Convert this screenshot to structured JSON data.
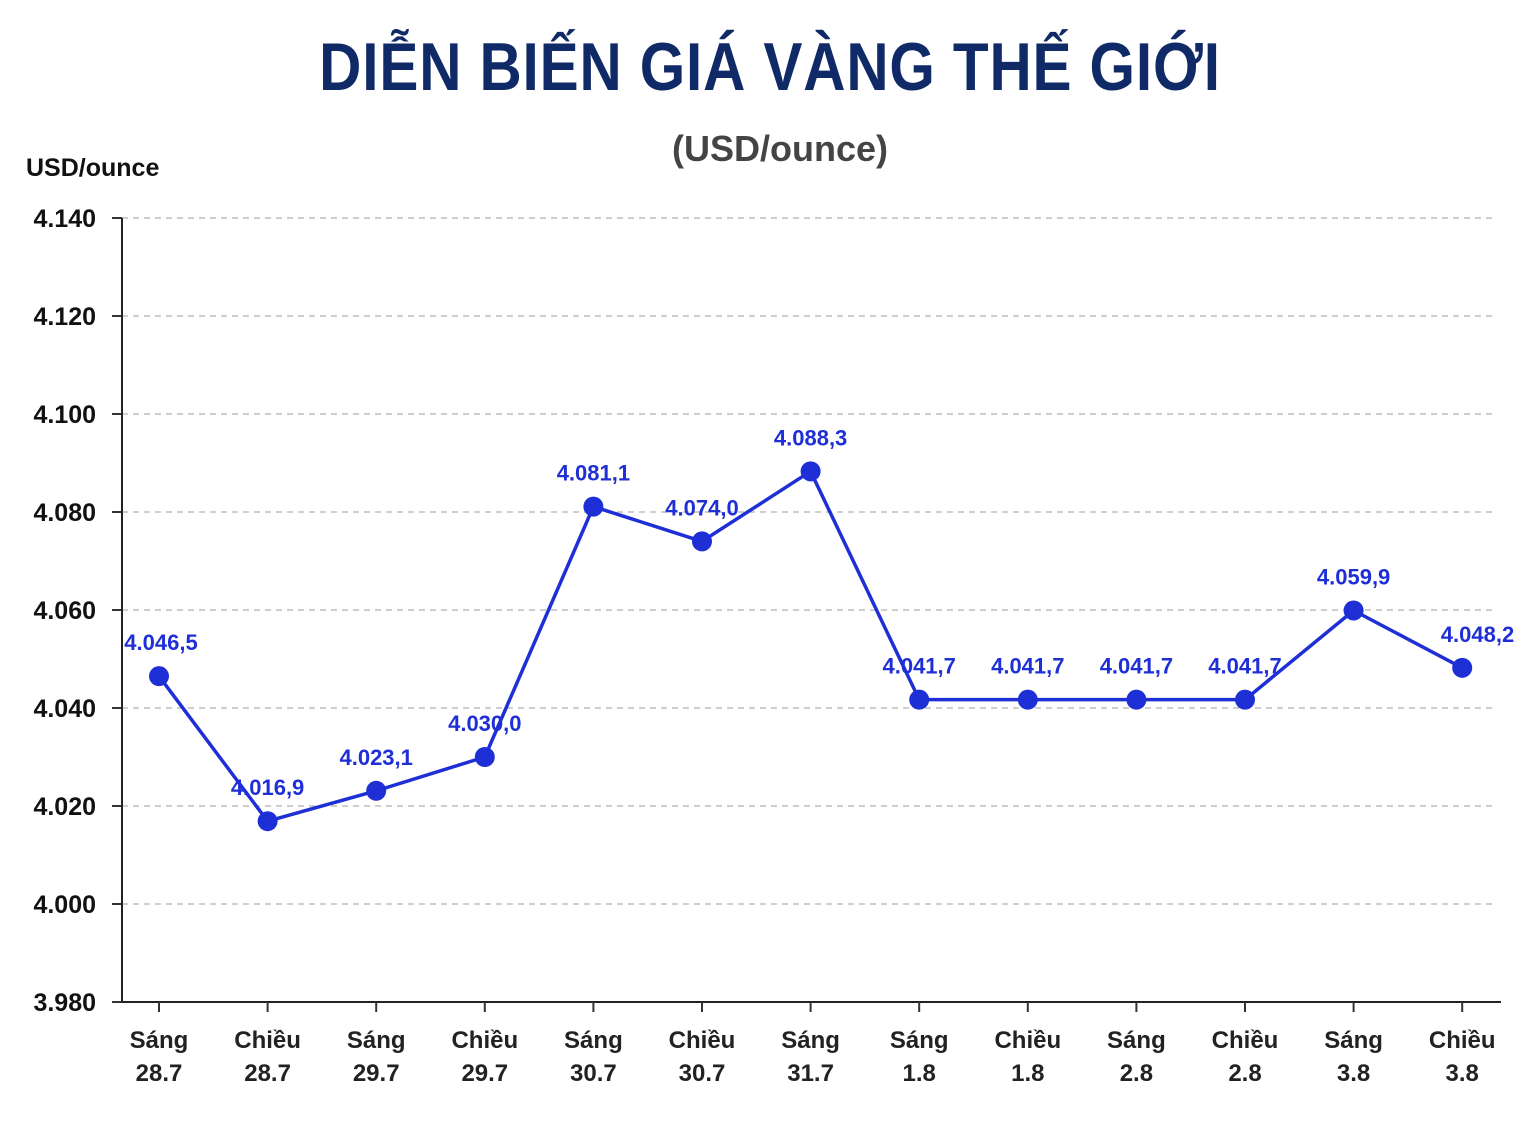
{
  "chart_data": {
    "type": "line",
    "title": "DIỄN BIẾN GIÁ VÀNG THẾ GIỚI",
    "subtitle": "(USD/ounce)",
    "ylabel": "USD/ounce",
    "xlabel": "",
    "ylim": [
      3980,
      4140
    ],
    "yticks": [
      "4.140",
      "4.120",
      "4.100",
      "4.080",
      "4.060",
      "4.040",
      "4.020",
      "4.000",
      "3.980"
    ],
    "ytick_values": [
      4140,
      4120,
      4100,
      4080,
      4060,
      4040,
      4020,
      4000,
      3980
    ],
    "categories": [
      [
        "Sáng",
        "28.7"
      ],
      [
        "Chiều",
        "28.7"
      ],
      [
        "Sáng",
        "29.7"
      ],
      [
        "Chiều",
        "29.7"
      ],
      [
        "Sáng",
        "30.7"
      ],
      [
        "Chiều",
        "30.7"
      ],
      [
        "Sáng",
        "31.7"
      ],
      [
        "Sáng",
        "1.8"
      ],
      [
        "Chiều",
        "1.8"
      ],
      [
        "Sáng",
        "2.8"
      ],
      [
        "Chiều",
        "2.8"
      ],
      [
        "Sáng",
        "3.8"
      ],
      [
        "Chiều",
        "3.8"
      ]
    ],
    "values": [
      4046.5,
      4016.9,
      4023.1,
      4030.0,
      4081.1,
      4074.0,
      4088.3,
      4041.7,
      4041.7,
      4041.7,
      4041.7,
      4059.9,
      4048.2
    ],
    "labels": [
      "4.046,5",
      "4.016,9",
      "4.023,1",
      "4.030,0",
      "4.081,1",
      "4.074,0",
      "4.088,3",
      "4.041,7",
      "4.041,7",
      "4.041,7",
      "4.041,7",
      "4.059,9",
      "4.048,2"
    ],
    "grid": true,
    "colors": {
      "line": "#1f2fd6",
      "title": "#0f2a66",
      "grid": "#bdbdbd"
    }
  }
}
